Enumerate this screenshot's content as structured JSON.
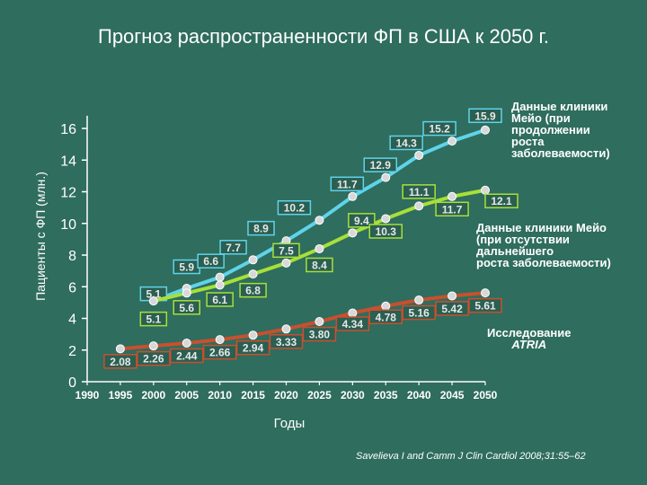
{
  "chart_data": {
    "type": "line",
    "title": "Прогноз распространенности ФП в США к 2050 г.",
    "xlabel": "Годы",
    "ylabel": "Пациенты с ФП (млн.)",
    "x": [
      1990,
      1995,
      2000,
      2005,
      2010,
      2015,
      2020,
      2025,
      2030,
      2035,
      2040,
      2045,
      2050
    ],
    "x_tick_labels": [
      "1990",
      "1995",
      "2000",
      "2005",
      "2010",
      "2015",
      "2020",
      "2025",
      "2030",
      "2035",
      "2040",
      "2045",
      "2050"
    ],
    "y_ticks": [
      0,
      2,
      4,
      6,
      8,
      10,
      12,
      14,
      16
    ],
    "ylim": [
      0,
      16.8
    ],
    "xlim": [
      1990,
      2050
    ],
    "series": [
      {
        "name": "Данные клиники Мейо (при продолжении роста заболеваемости)",
        "color": "#5fd3ea",
        "x": [
          2000,
          2005,
          2010,
          2015,
          2020,
          2025,
          2030,
          2035,
          2040,
          2045,
          2050
        ],
        "values": [
          5.1,
          5.9,
          6.6,
          7.7,
          8.9,
          10.2,
          11.7,
          12.9,
          14.3,
          15.2,
          15.9
        ],
        "labels": [
          "5.1",
          "5.9",
          "6.6",
          "7.7",
          "8.9",
          "10.2",
          "11.7",
          "12.9",
          "14.3",
          "15.2",
          "15.9"
        ],
        "label_offsets": [
          [
            0,
            -8
          ],
          [
            0,
            -24
          ],
          [
            -10,
            -18
          ],
          [
            -22,
            -14
          ],
          [
            -28,
            -14
          ],
          [
            -28,
            -14
          ],
          [
            -6,
            -14
          ],
          [
            -6,
            -14
          ],
          [
            -14,
            -14
          ],
          [
            -14,
            -14
          ],
          [
            0,
            -16
          ]
        ]
      },
      {
        "name": "Данные клиники Мейо (при отсутствии дальнейшего роста заболеваемости)",
        "color": "#a6e03a",
        "x": [
          2000,
          2005,
          2010,
          2015,
          2020,
          2025,
          2030,
          2035,
          2040,
          2045,
          2050
        ],
        "values": [
          5.1,
          5.6,
          6.1,
          6.8,
          7.5,
          8.4,
          9.4,
          10.3,
          11.1,
          11.7,
          12.1
        ],
        "labels": [
          "5.1",
          "5.6",
          "6.1",
          "6.8",
          "7.5",
          "8.4",
          "9.4",
          "10.3",
          "11.1",
          "11.7",
          "12.1"
        ],
        "label_offsets": [
          [
            0,
            20
          ],
          [
            0,
            16
          ],
          [
            0,
            16
          ],
          [
            0,
            18
          ],
          [
            0,
            -14
          ],
          [
            0,
            18
          ],
          [
            10,
            -14
          ],
          [
            0,
            14
          ],
          [
            0,
            -16
          ],
          [
            0,
            14
          ],
          [
            18,
            12
          ]
        ]
      },
      {
        "name": "Исследование ATRIA",
        "color": "#c8502e",
        "x": [
          1995,
          2000,
          2005,
          2010,
          2015,
          2020,
          2025,
          2030,
          2035,
          2040,
          2045,
          2050
        ],
        "values": [
          2.08,
          2.26,
          2.44,
          2.66,
          2.94,
          3.33,
          3.8,
          4.34,
          4.78,
          5.16,
          5.42,
          5.61
        ],
        "labels": [
          "2.08",
          "2.26",
          "2.44",
          "2.66",
          "2.94",
          "3.33",
          "3.80",
          "4.34",
          "4.78",
          "5.16",
          "5.42",
          "5.61"
        ],
        "label_offsets": [
          [
            0,
            14
          ],
          [
            0,
            14
          ],
          [
            0,
            14
          ],
          [
            0,
            14
          ],
          [
            0,
            14
          ],
          [
            0,
            14
          ],
          [
            0,
            14
          ],
          [
            0,
            12
          ],
          [
            0,
            12
          ],
          [
            0,
            14
          ],
          [
            0,
            14
          ],
          [
            0,
            14
          ]
        ]
      }
    ],
    "legend_annotations": [
      {
        "text": [
          "Данные клиники",
          "Мейо (при",
          "продолжении",
          "роста",
          "заболеваемости)"
        ]
      },
      {
        "text": [
          "Данные клиники Мейо",
          "(при отсутствии",
          "дальнейшего",
          "роста заболеваемости)"
        ]
      },
      {
        "text": [
          "Исследование",
          "ATRIA"
        ]
      }
    ],
    "citation": "Savelieva I and Camm J Clin Cardiol 2008;31:55–62"
  }
}
